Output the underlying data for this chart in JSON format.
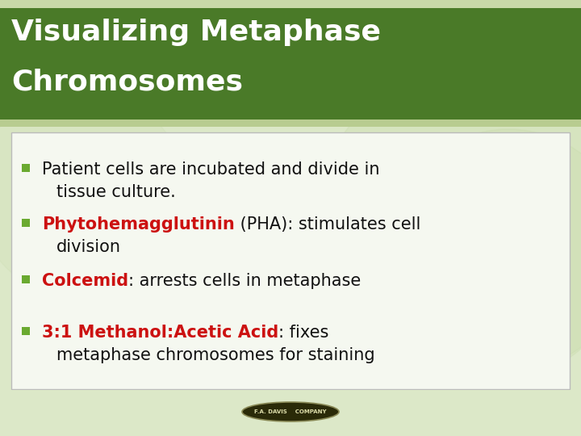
{
  "title_line1": "Visualizing Metaphase",
  "title_line2": "Chromosomes",
  "title_bg_color": "#4a7a28",
  "title_text_color": "#ffffff",
  "title_stripe_top_color": "#c8d8a8",
  "title_stripe_bot_color": "#b8cc90",
  "body_bg_color": "#f5f8f0",
  "body_border_color": "#bbbbbb",
  "overall_bg_color": "#dce8c8",
  "bullet_color": "#6aaa30",
  "bottom_bar_color": "#dce8c8",
  "figsize": [
    7.2,
    5.4
  ],
  "dpi": 100,
  "bullet_items": [
    {
      "segments": [
        {
          "text": "Patient cells are incubated and divide in",
          "color": "#111111",
          "bold": false
        }
      ],
      "line2": "tissue culture.",
      "line2_color": "#111111"
    },
    {
      "segments": [
        {
          "text": "Phytohemagglutinin",
          "color": "#cc1111",
          "bold": true
        },
        {
          "text": " (PHA): stimulates cell",
          "color": "#111111",
          "bold": false
        }
      ],
      "line2": "division",
      "line2_color": "#111111"
    },
    {
      "segments": [
        {
          "text": "Colcemid",
          "color": "#cc1111",
          "bold": true
        },
        {
          "text": ": arrests cells in metaphase",
          "color": "#111111",
          "bold": false
        }
      ],
      "line2": null,
      "line2_color": null
    },
    {
      "segments": [
        {
          "text": "3:1 Methanol:Acetic Acid",
          "color": "#cc1111",
          "bold": true
        },
        {
          "text": ": fixes",
          "color": "#111111",
          "bold": false
        }
      ],
      "line2": "metaphase chromosomes for staining",
      "line2_color": "#111111"
    }
  ]
}
